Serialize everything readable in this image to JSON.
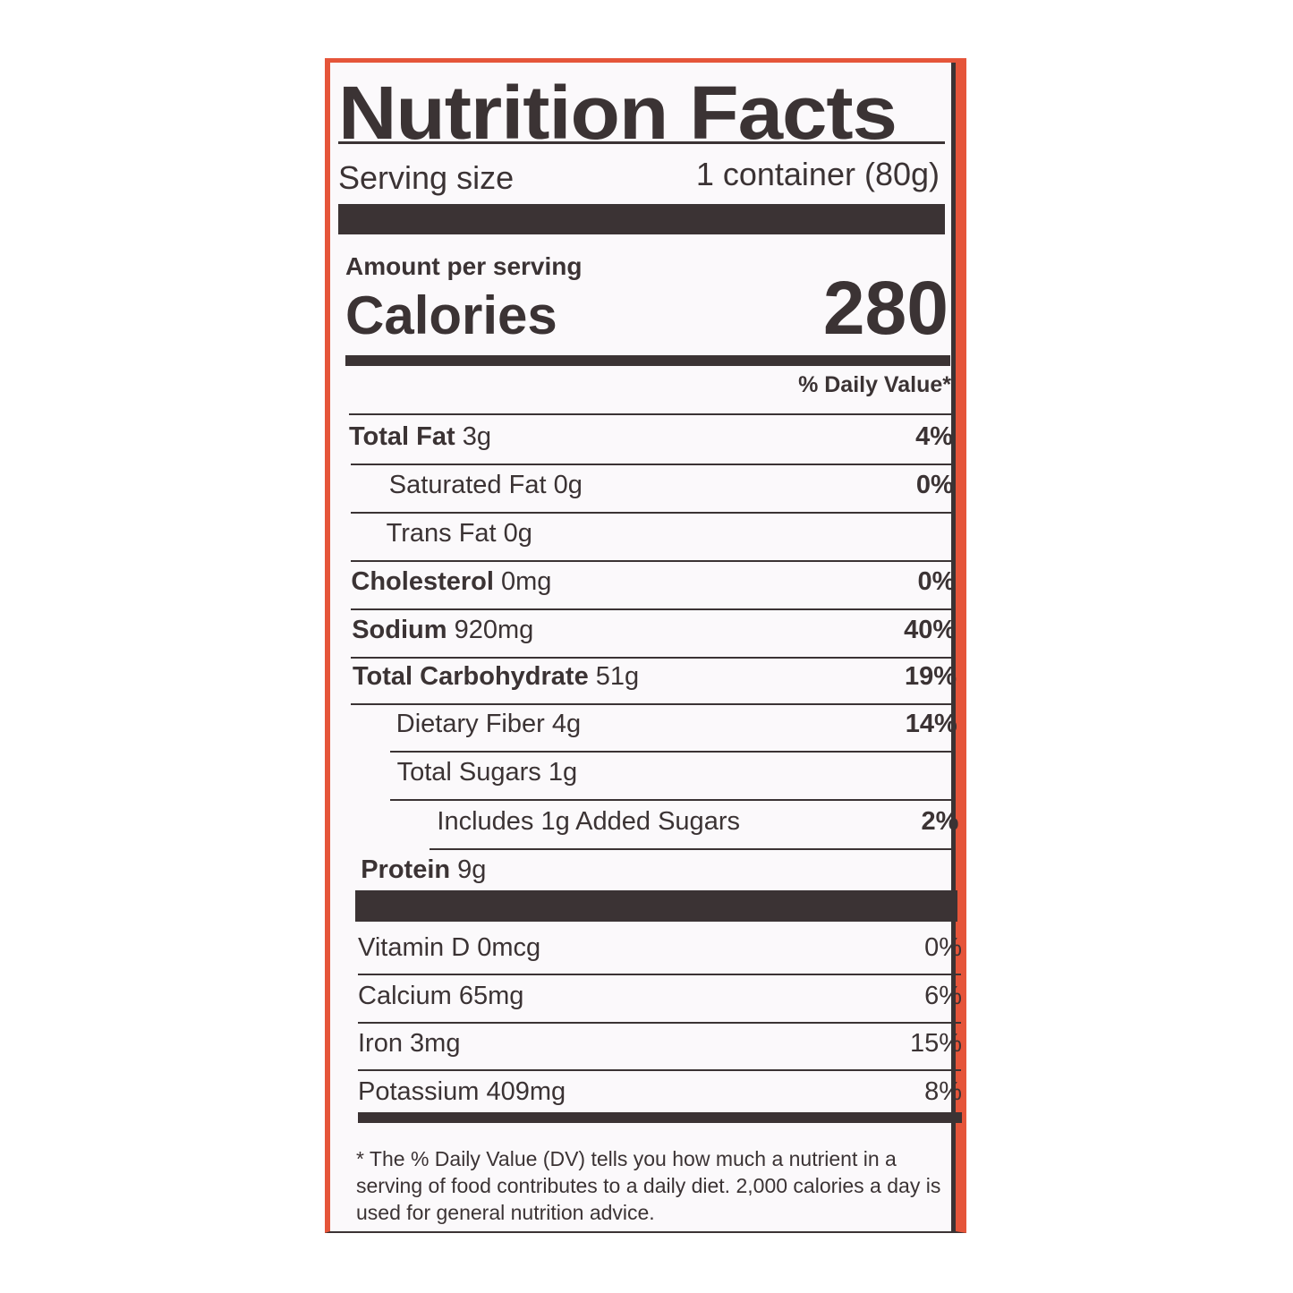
{
  "label": {
    "title": "Nutrition Facts",
    "serving_size_label": "Serving size",
    "serving_size_value": "1 container (80g)",
    "amount_per_serving": "Amount per serving",
    "calories_label": "Calories",
    "calories_value": "280",
    "dv_header": "% Daily Value*",
    "nutrients": [
      {
        "name": "Total Fat",
        "amount": "3g",
        "dv": "4%"
      },
      {
        "name": "Saturated Fat",
        "amount": "0g",
        "dv": "0%"
      },
      {
        "name": "Trans Fat",
        "amount": "0g",
        "dv": ""
      },
      {
        "name": "Cholesterol",
        "amount": "0mg",
        "dv": "0%"
      },
      {
        "name": "Sodium",
        "amount": "920mg",
        "dv": "40%"
      },
      {
        "name": "Total Carbohydrate",
        "amount": "51g",
        "dv": "19%"
      },
      {
        "name": "Dietary Fiber",
        "amount": "4g",
        "dv": "14%"
      },
      {
        "name": "Total Sugars",
        "amount": "1g",
        "dv": ""
      },
      {
        "name": "Includes 1g Added Sugars",
        "amount": "",
        "dv": "2%"
      },
      {
        "name": "Protein",
        "amount": "9g",
        "dv": ""
      }
    ],
    "vitamins": [
      {
        "name": "Vitamin D",
        "amount": "0mcg",
        "dv": "0%"
      },
      {
        "name": "Calcium",
        "amount": "65mg",
        "dv": "6%"
      },
      {
        "name": "Iron",
        "amount": "3mg",
        "dv": "15%"
      },
      {
        "name": "Potassium",
        "amount": "409mg",
        "dv": "8%"
      }
    ],
    "footnote": "* The % Daily Value (DV) tells you how much a nutrient in a serving of food contributes to a daily diet. 2,000 calories a day is used for general nutrition advice.",
    "colors": {
      "border": "#e5553a",
      "ink": "#3b3334"
    }
  }
}
